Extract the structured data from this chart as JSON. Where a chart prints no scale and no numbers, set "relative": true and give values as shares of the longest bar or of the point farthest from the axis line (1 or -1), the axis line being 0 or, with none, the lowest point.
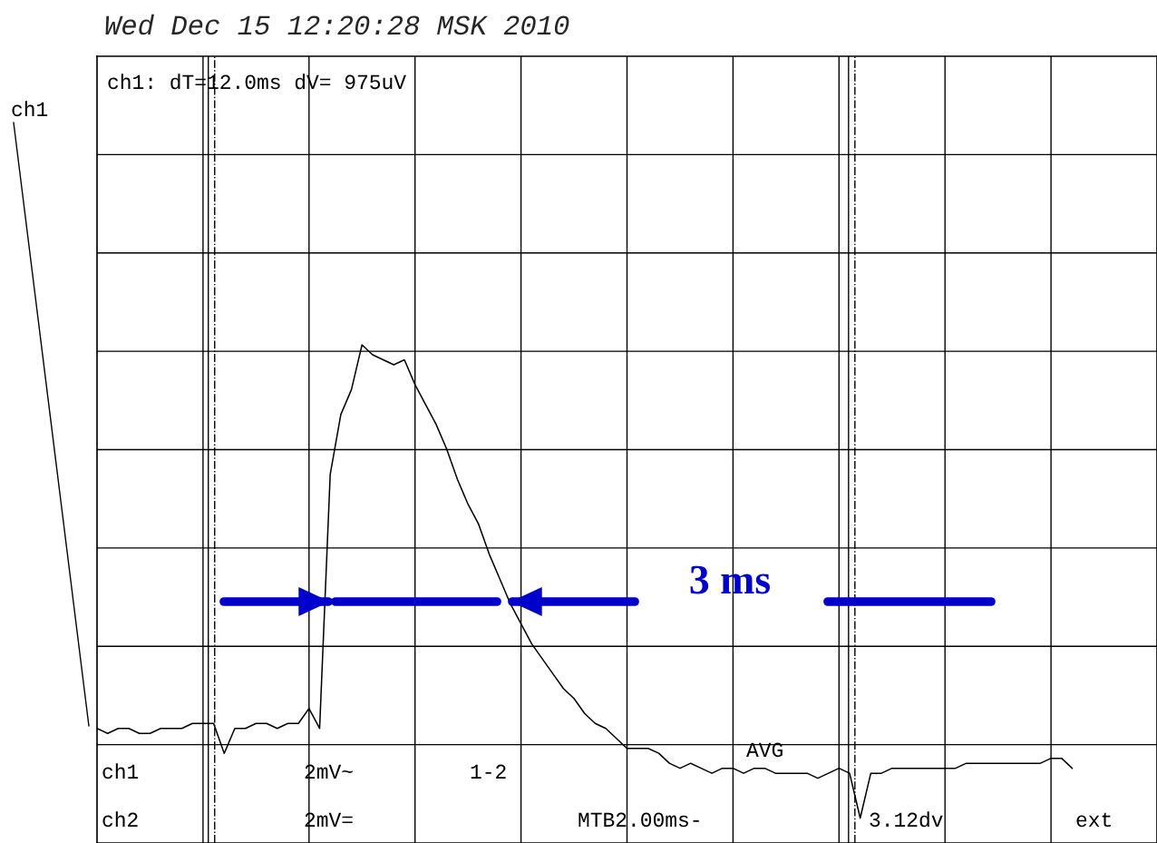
{
  "chart_data": {
    "type": "line",
    "title": "Wed Dec 15 12:20:28 MSK 2010",
    "relative": true,
    "grid": true,
    "legend": false,
    "marker": "none",
    "line_style": "solid",
    "categories": [
      null,
      null,
      null,
      null,
      null,
      null,
      null,
      null,
      null,
      null,
      null,
      null,
      null,
      null,
      null,
      null,
      null,
      null,
      null,
      null,
      null,
      null,
      null,
      null,
      null,
      null,
      null,
      null,
      null,
      null,
      null,
      null,
      null,
      null,
      null,
      null,
      null,
      null,
      null,
      null,
      null,
      null,
      null,
      null,
      null,
      null,
      null,
      null,
      null,
      null,
      null,
      null,
      null,
      null,
      null,
      null,
      null,
      null,
      null,
      null,
      null,
      null,
      null,
      null,
      null,
      null,
      null,
      null,
      null,
      null,
      null,
      null,
      null,
      null,
      null,
      null,
      null,
      null,
      null,
      null,
      null,
      null,
      null,
      null,
      null,
      null,
      null,
      null,
      null,
      null,
      null,
      null,
      null
    ],
    "series": [
      {
        "color": "#000000",
        "values": [
          0.23,
          0.22,
          0.23,
          0.23,
          0.22,
          0.22,
          0.23,
          0.23,
          0.23,
          0.24,
          0.24,
          0.24,
          0.18,
          0.23,
          0.23,
          0.24,
          0.24,
          0.23,
          0.24,
          0.24,
          0.27,
          0.23,
          0.74,
          0.86,
          0.91,
          1.0,
          0.98,
          0.97,
          0.96,
          0.97,
          0.92,
          0.88,
          0.84,
          0.79,
          0.73,
          0.68,
          0.64,
          0.58,
          0.53,
          0.48,
          0.44,
          0.4,
          0.37,
          0.34,
          0.31,
          0.29,
          0.26,
          0.24,
          0.23,
          0.21,
          0.19,
          0.19,
          0.19,
          0.18,
          0.16,
          0.15,
          0.16,
          0.15,
          0.14,
          0.15,
          0.15,
          0.14,
          0.15,
          0.15,
          0.14,
          0.14,
          0.14,
          0.14,
          0.13,
          0.14,
          0.15,
          0.14,
          0.05,
          0.14,
          0.14,
          0.15,
          0.15,
          0.15,
          0.15,
          0.15,
          0.15,
          0.15,
          0.16,
          0.16,
          0.16,
          0.16,
          0.16,
          0.16,
          0.16,
          0.16,
          0.17,
          0.17,
          0.15
        ]
      }
    ],
    "annotations": [
      "ch1: dT=12.0ms dV= 975uV",
      "ch1",
      "ch1",
      "ch2",
      "2mV~",
      "2mV=",
      "1-2",
      "AVG",
      "MTB2.00ms-",
      "3.12dv",
      "ext",
      "3 ms"
    ]
  }
}
